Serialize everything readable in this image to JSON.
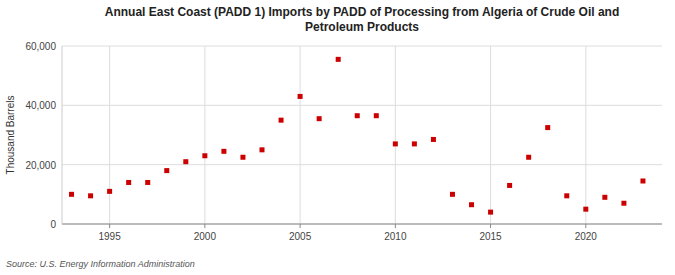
{
  "chart_data": {
    "type": "scatter",
    "title": "Annual East Coast (PADD 1) Imports by PADD of Processing from Algeria of Crude Oil and\nPetroleum Products",
    "y_label": "Thousand Barrels",
    "source": "Source: U.S. Energy Information Administration",
    "color": "#cc0000",
    "marker": "square",
    "grid": true,
    "x": [
      1993,
      1994,
      1995,
      1996,
      1997,
      1998,
      1999,
      2000,
      2001,
      2002,
      2003,
      2004,
      2005,
      2006,
      2007,
      2008,
      2009,
      2010,
      2011,
      2012,
      2013,
      2014,
      2015,
      2016,
      2017,
      2018,
      2019,
      2020,
      2021,
      2022,
      2023
    ],
    "values": [
      10000,
      9500,
      11000,
      14000,
      14000,
      18000,
      21000,
      23000,
      24500,
      22500,
      25000,
      35000,
      43000,
      35500,
      55500,
      36500,
      36500,
      27000,
      27000,
      28500,
      10000,
      6500,
      4000,
      13000,
      22500,
      32500,
      9500,
      5000,
      9000,
      7000,
      14500
    ],
    "xlim": [
      1992.5,
      2024
    ],
    "ylim": [
      0,
      60000
    ],
    "xticks": [
      1995,
      2000,
      2005,
      2010,
      2015,
      2020
    ],
    "yticks": [
      0,
      {
        "value": 20000,
        "label": "20,000"
      },
      {
        "value": 40000,
        "label": "40,000"
      },
      {
        "value": 60000,
        "label": "60,000"
      }
    ]
  }
}
